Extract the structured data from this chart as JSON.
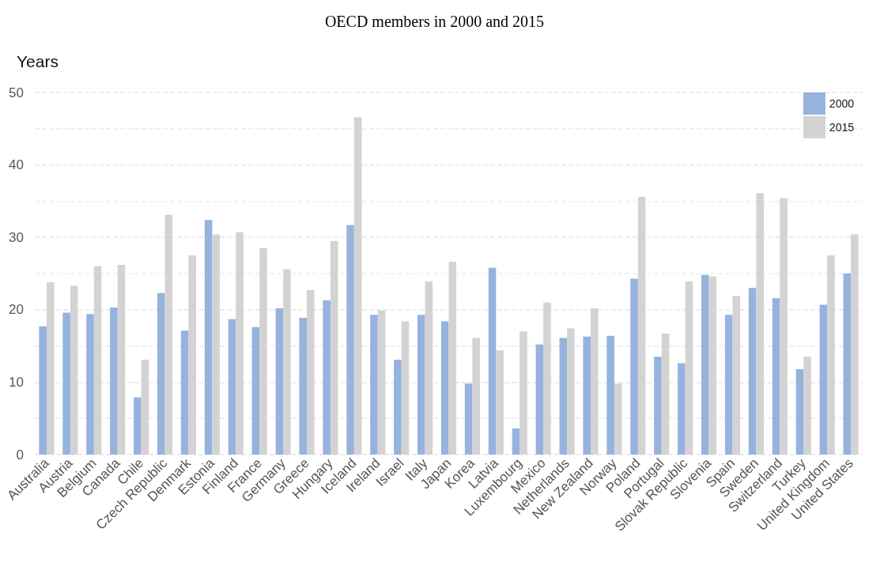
{
  "chart_data": {
    "type": "bar",
    "title": "OECD members in 2000 and 2015",
    "ylabel": "Years",
    "categories": [
      "Australia",
      "Austria",
      "Belgium",
      "Canada",
      "Chile",
      "Czech Republic",
      "Denmark",
      "Estonia",
      "Finland",
      "France",
      "Germany",
      "Greece",
      "Hungary",
      "Iceland",
      "Ireland",
      "Israel",
      "Italy",
      "Japan",
      "Korea",
      "Latvia",
      "Luxembourg",
      "Mexico",
      "Netherlands",
      "New Zealand",
      "Norway",
      "Poland",
      "Portugal",
      "Slovak Republic",
      "Slovenia",
      "Spain",
      "Sweden",
      "Switzerland",
      "Turkey",
      "United Kingdom",
      "United States"
    ],
    "series": [
      {
        "name": "2000",
        "color": "#95b3dd",
        "values": [
          17.7,
          19.6,
          19.4,
          20.3,
          7.9,
          22.3,
          17.1,
          32.4,
          18.7,
          17.6,
          20.2,
          18.9,
          21.3,
          31.7,
          19.3,
          13.1,
          19.3,
          18.4,
          9.8,
          25.8,
          3.6,
          15.2,
          16.1,
          16.3,
          16.4,
          24.3,
          13.5,
          12.6,
          24.8,
          19.3,
          23.0,
          21.6,
          11.8,
          20.7,
          25.0
        ]
      },
      {
        "name": "2015",
        "color": "#d3d3d3",
        "values": [
          23.8,
          23.3,
          26.0,
          26.2,
          13.1,
          33.1,
          27.5,
          30.4,
          30.7,
          28.5,
          25.6,
          22.7,
          29.5,
          46.6,
          19.9,
          18.4,
          23.9,
          26.6,
          16.1,
          14.4,
          17.0,
          21.0,
          17.4,
          20.2,
          9.8,
          35.6,
          16.7,
          23.9,
          24.6,
          21.9,
          36.1,
          35.4,
          13.5,
          27.5,
          30.4
        ]
      }
    ],
    "ylim": [
      0,
      50
    ],
    "yticks": [
      0,
      10,
      20,
      30,
      40,
      50
    ],
    "grid": "y",
    "legend": "top right"
  }
}
